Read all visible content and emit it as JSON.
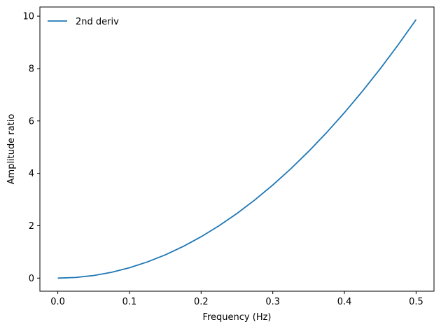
{
  "chart_data": {
    "type": "line",
    "xlabel": "Frequency (Hz)",
    "ylabel": "Amplitude ratio",
    "xlim": [
      -0.025,
      0.525
    ],
    "ylim": [
      -0.5,
      10.35
    ],
    "xticks": [
      0.0,
      0.1,
      0.2,
      0.3,
      0.4,
      0.5
    ],
    "xtick_labels": [
      "0.0",
      "0.1",
      "0.2",
      "0.3",
      "0.4",
      "0.5"
    ],
    "yticks": [
      0,
      2,
      4,
      6,
      8,
      10
    ],
    "ytick_labels": [
      "0",
      "2",
      "4",
      "6",
      "8",
      "10"
    ],
    "grid": false,
    "legend_position": "top-left",
    "series": [
      {
        "name": "2nd deriv",
        "color": "#1f77b4",
        "x": [
          0.0,
          0.025,
          0.05,
          0.075,
          0.1,
          0.125,
          0.15,
          0.175,
          0.2,
          0.225,
          0.25,
          0.275,
          0.3,
          0.325,
          0.35,
          0.375,
          0.4,
          0.425,
          0.45,
          0.475,
          0.5
        ],
        "y": [
          0.0,
          0.025,
          0.099,
          0.222,
          0.395,
          0.617,
          0.888,
          1.209,
          1.579,
          1.999,
          2.467,
          2.986,
          3.553,
          4.17,
          4.836,
          5.552,
          6.317,
          7.131,
          7.994,
          8.907,
          9.87
        ]
      }
    ]
  }
}
